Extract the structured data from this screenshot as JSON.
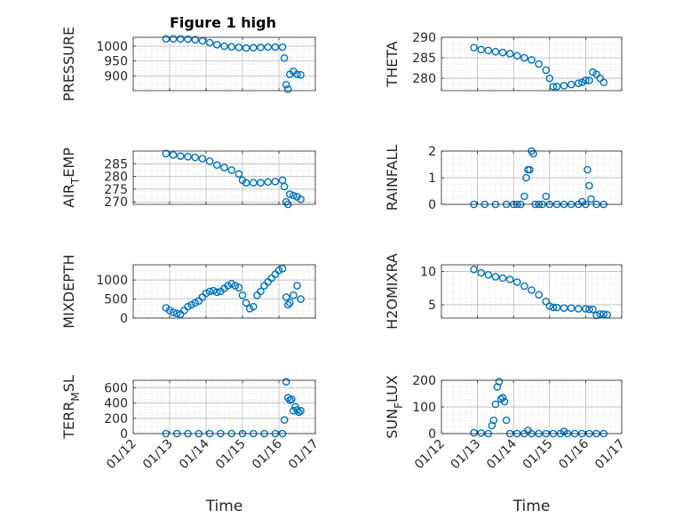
{
  "figure_title": "Figure 1 high",
  "time_axis_label": "Time",
  "marker_color": "#0072BD",
  "chart_data": [
    {
      "type": "scatter",
      "ylabel": "PRESSURE",
      "xlim": [
        "01/12",
        "01/17"
      ],
      "ylim": [
        850,
        1030
      ],
      "yticks": [
        900,
        950,
        1000
      ],
      "x": [
        0.9,
        1.1,
        1.3,
        1.5,
        1.7,
        1.9,
        2.1,
        2.3,
        2.5,
        2.7,
        2.9,
        3.1,
        3.3,
        3.5,
        3.7,
        3.9,
        4.1,
        4.15,
        4.2,
        4.25,
        4.3,
        4.4,
        4.5,
        4.6
      ],
      "y": [
        1025,
        1025,
        1025,
        1024,
        1022,
        1018,
        1012,
        1005,
        1000,
        998,
        996,
        994,
        995,
        996,
        997,
        997,
        997,
        960,
        870,
        855,
        905,
        915,
        905,
        903
      ]
    },
    {
      "type": "scatter",
      "ylabel": "THETA",
      "xlim": [
        "01/12",
        "01/17"
      ],
      "ylim": [
        277,
        290
      ],
      "yticks": [
        280,
        285,
        290
      ],
      "x": [
        0.9,
        1.1,
        1.3,
        1.5,
        1.7,
        1.9,
        2.1,
        2.3,
        2.5,
        2.7,
        2.9,
        3.0,
        3.1,
        3.2,
        3.4,
        3.6,
        3.8,
        3.9,
        4.0,
        4.1,
        4.2,
        4.3,
        4.4,
        4.5
      ],
      "y": [
        287.5,
        287,
        286.8,
        286.5,
        286.3,
        286,
        285.5,
        285,
        284.5,
        283.5,
        282,
        280,
        278,
        278,
        278.2,
        278.5,
        278.8,
        279,
        279.5,
        279.5,
        281.5,
        281,
        280,
        279
      ]
    },
    {
      "type": "scatter",
      "ylabel": "AIR_TEMP",
      "xlim": [
        "01/12",
        "01/17"
      ],
      "ylim": [
        269,
        290
      ],
      "yticks": [
        270,
        275,
        280,
        285
      ],
      "x": [
        0.9,
        1.1,
        1.3,
        1.5,
        1.7,
        1.9,
        2.1,
        2.3,
        2.5,
        2.7,
        2.9,
        3.0,
        3.1,
        3.3,
        3.5,
        3.7,
        3.9,
        4.1,
        4.15,
        4.2,
        4.25,
        4.3,
        4.4,
        4.5,
        4.6
      ],
      "y": [
        289,
        288.5,
        288,
        287.8,
        287.5,
        287,
        286,
        284.5,
        283.5,
        282.5,
        281,
        278.5,
        277.5,
        277.5,
        277.5,
        277.8,
        278,
        278.5,
        276,
        270,
        269,
        273,
        272.5,
        272,
        271
      ]
    },
    {
      "type": "scatter",
      "ylabel": "RAINFALL",
      "xlim": [
        "01/12",
        "01/17"
      ],
      "ylim": [
        0,
        2
      ],
      "yticks": [
        0,
        1,
        2
      ],
      "x": [
        0.9,
        1.2,
        1.5,
        1.8,
        2.0,
        2.1,
        2.2,
        2.3,
        2.35,
        2.4,
        2.45,
        2.5,
        2.55,
        2.6,
        2.7,
        2.8,
        2.9,
        3.0,
        3.2,
        3.4,
        3.6,
        3.8,
        3.9,
        4.0,
        4.05,
        4.1,
        4.15,
        4.3,
        4.5
      ],
      "y": [
        0,
        0,
        0,
        0,
        0,
        0,
        0,
        0.3,
        1.0,
        1.3,
        1.3,
        2.0,
        1.9,
        0,
        0,
        0,
        0.3,
        0,
        0,
        0,
        0,
        0,
        0.1,
        0,
        1.3,
        0.7,
        0.2,
        0,
        0
      ]
    },
    {
      "type": "scatter",
      "ylabel": "MIXDEPTH",
      "xlim": [
        "01/12",
        "01/17"
      ],
      "ylim": [
        0,
        1400
      ],
      "yticks": [
        0,
        500,
        1000
      ],
      "x": [
        0.9,
        1.0,
        1.1,
        1.2,
        1.3,
        1.4,
        1.5,
        1.6,
        1.7,
        1.8,
        1.9,
        2.0,
        2.1,
        2.2,
        2.3,
        2.4,
        2.5,
        2.6,
        2.7,
        2.8,
        2.9,
        3.0,
        3.1,
        3.2,
        3.3,
        3.4,
        3.5,
        3.6,
        3.7,
        3.8,
        3.9,
        4.0,
        4.1,
        4.2,
        4.25,
        4.3,
        4.4,
        4.5,
        4.6
      ],
      "y": [
        270,
        200,
        150,
        120,
        100,
        200,
        300,
        350,
        400,
        450,
        550,
        650,
        700,
        720,
        680,
        700,
        780,
        850,
        900,
        850,
        800,
        600,
        400,
        250,
        300,
        600,
        700,
        850,
        950,
        1050,
        1150,
        1250,
        1300,
        550,
        350,
        400,
        600,
        850,
        500
      ]
    },
    {
      "type": "scatter",
      "ylabel": "H2OMIXRA",
      "xlim": [
        "01/12",
        "01/17"
      ],
      "ylim": [
        3,
        11
      ],
      "yticks": [
        5,
        10
      ],
      "x": [
        0.9,
        1.1,
        1.3,
        1.5,
        1.7,
        1.9,
        2.1,
        2.3,
        2.5,
        2.7,
        2.9,
        3.0,
        3.1,
        3.2,
        3.4,
        3.6,
        3.8,
        4.0,
        4.1,
        4.2,
        4.3,
        4.4,
        4.5,
        4.6
      ],
      "y": [
        10.3,
        9.8,
        9.5,
        9.2,
        9.0,
        8.8,
        8.4,
        7.8,
        7.2,
        6.5,
        5.5,
        4.8,
        4.6,
        4.6,
        4.5,
        4.5,
        4.4,
        4.4,
        4.3,
        4.3,
        3.4,
        3.6,
        3.6,
        3.5
      ]
    },
    {
      "type": "scatter",
      "ylabel": "TERR_MSL",
      "xlim": [
        "01/12",
        "01/17"
      ],
      "ylim": [
        0,
        700
      ],
      "yticks": [
        0,
        200,
        400,
        600
      ],
      "x": [
        0.9,
        1.2,
        1.5,
        1.8,
        2.1,
        2.4,
        2.7,
        3.0,
        3.3,
        3.6,
        3.9,
        4.1,
        4.15,
        4.2,
        4.25,
        4.3,
        4.35,
        4.4,
        4.45,
        4.5,
        4.55,
        4.6
      ],
      "y": [
        0,
        0,
        0,
        0,
        0,
        0,
        0,
        0,
        0,
        0,
        0,
        0,
        180,
        680,
        470,
        440,
        450,
        300,
        350,
        310,
        280,
        300
      ]
    },
    {
      "type": "scatter",
      "ylabel": "SUN_FLUX",
      "xlim": [
        "01/12",
        "01/17"
      ],
      "ylim": [
        0,
        200
      ],
      "yticks": [
        0,
        100,
        200
      ],
      "x": [
        0.9,
        1.1,
        1.3,
        1.4,
        1.45,
        1.5,
        1.55,
        1.6,
        1.65,
        1.7,
        1.75,
        1.8,
        1.9,
        2.1,
        2.3,
        2.4,
        2.5,
        2.7,
        2.9,
        3.1,
        3.3,
        3.4,
        3.5,
        3.7,
        3.9,
        4.1,
        4.3,
        4.5
      ],
      "y": [
        3,
        2,
        0,
        30,
        50,
        110,
        175,
        195,
        130,
        135,
        120,
        50,
        0,
        0,
        0,
        12,
        0,
        0,
        0,
        0,
        0,
        8,
        0,
        0,
        0,
        0,
        0,
        0
      ]
    }
  ],
  "x_tick_labels": [
    "01/12",
    "01/13",
    "01/14",
    "01/15",
    "01/16",
    "01/17"
  ]
}
